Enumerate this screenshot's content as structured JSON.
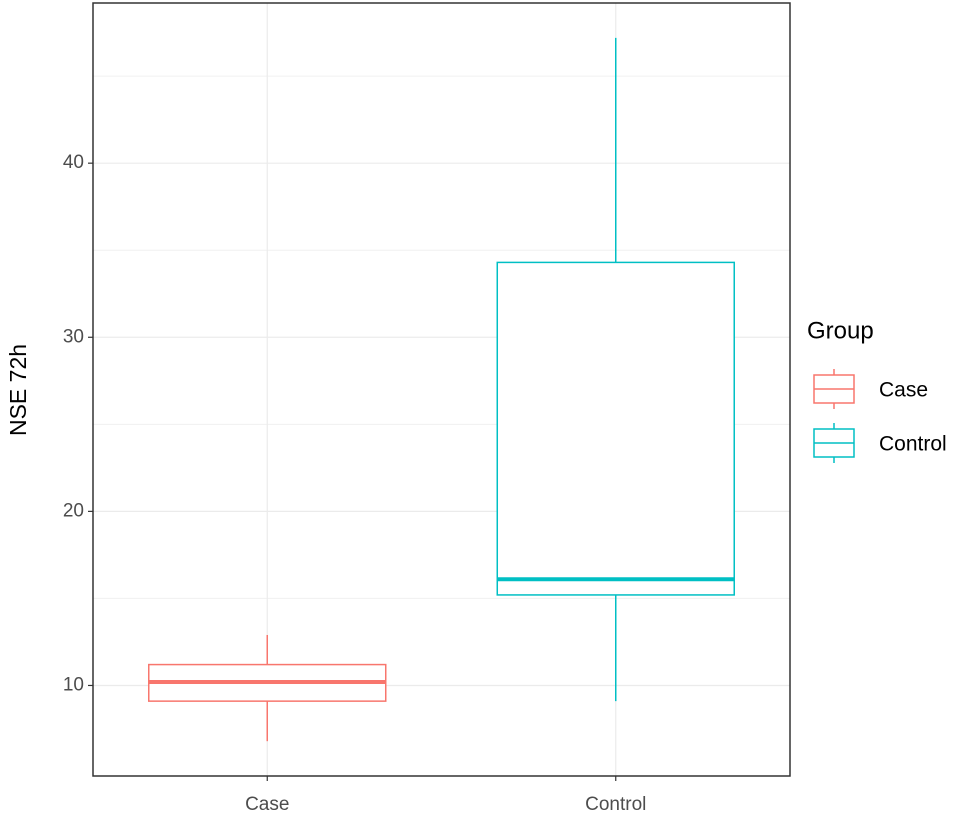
{
  "chart_data": {
    "type": "boxplot",
    "y_label": "NSE 72h",
    "categories": [
      "Case",
      "Control"
    ],
    "series": [
      {
        "name": "Case",
        "color": "#F8766D",
        "min": 6.8,
        "q1": 9.1,
        "median": 10.2,
        "q3": 11.2,
        "max": 12.9
      },
      {
        "name": "Control",
        "color": "#00BFC4",
        "min": 9.1,
        "q1": 15.2,
        "median": 16.1,
        "q3": 34.3,
        "max": 47.2
      }
    ],
    "legend_title": "Group",
    "legend_position": "right",
    "ylim": [
      4.8,
      49.2
    ],
    "yticks": [
      10,
      20,
      30,
      40
    ],
    "yminor": [
      15,
      25,
      35,
      45
    ],
    "grid": true
  }
}
